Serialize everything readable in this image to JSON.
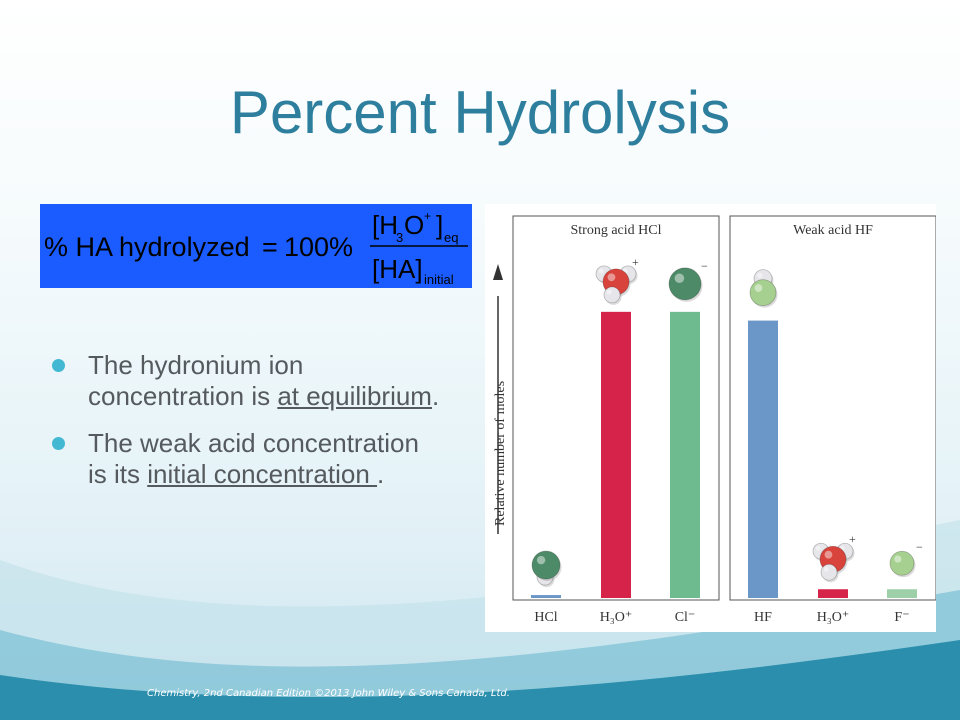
{
  "slide": {
    "title": "Percent Hydrolysis",
    "footer": "Chemistry, 2nd Canadian Edition ©2013 John Wiley & Sons Canada, Ltd."
  },
  "formula": {
    "lhs": "% HA hydrolyzed",
    "operator": "=",
    "factor": "100%",
    "numerator_open": "[H",
    "numerator_sub": "3",
    "numerator_mid": "O",
    "numerator_sup": "+",
    "numerator_close": "]",
    "numerator_sub2": "eq",
    "denominator": "[HA]",
    "denominator_sub": "initial",
    "background_color": "#1a5cff"
  },
  "bullets": [
    {
      "before": "The hydronium ion concentration is ",
      "underlined": "at equilibrium",
      "after": "."
    },
    {
      "before": "The weak acid concentration is its ",
      "underlined": "initial concentration ",
      "after": "."
    }
  ],
  "chart": {
    "y_axis_label": "Relative number of moles",
    "panels": [
      {
        "title": "Strong acid HCl",
        "bars": [
          {
            "label": "HCl",
            "value": 0.01,
            "color": "#6b96c8",
            "molecule": "HCl",
            "charge": ""
          },
          {
            "label": "H₃O⁺",
            "value": 0.98,
            "color": "#d6234a",
            "molecule": "H3O",
            "charge": "+"
          },
          {
            "label": "Cl⁻",
            "value": 0.98,
            "color": "#6dbb8e",
            "molecule": "Cl",
            "charge": "−"
          }
        ]
      },
      {
        "title": "Weak acid HF",
        "bars": [
          {
            "label": "HF",
            "value": 0.95,
            "color": "#6b96c8",
            "molecule": "HF",
            "charge": ""
          },
          {
            "label": "H₃O⁺",
            "value": 0.03,
            "color": "#d6234a",
            "molecule": "H3O",
            "charge": "+"
          },
          {
            "label": "F⁻",
            "value": 0.03,
            "color": "#9dd0a8",
            "molecule": "F",
            "charge": "−"
          }
        ]
      }
    ]
  }
}
